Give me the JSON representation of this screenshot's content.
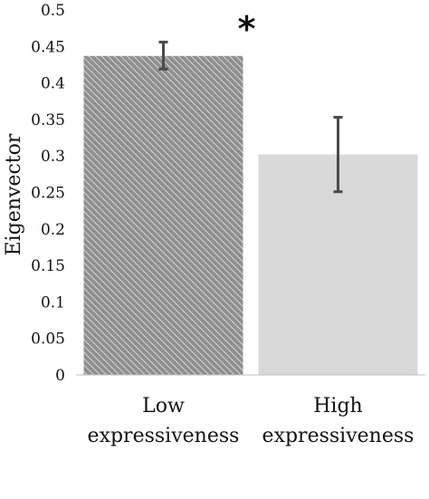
{
  "chart_data": {
    "type": "bar",
    "title": "",
    "xlabel": "",
    "ylabel": "Eigenvector",
    "ylim": [
      0,
      0.5
    ],
    "yticks": [
      "0",
      "0.05",
      "0.1",
      "0.15",
      "0.2",
      "0.25",
      "0.3",
      "0.35",
      "0.4",
      "0.45",
      "0.5"
    ],
    "categories": [
      "Low expressiveness",
      "High expressiveness"
    ],
    "category_lines": [
      [
        "Low",
        "expressiveness"
      ],
      [
        "High",
        "expressiveness"
      ]
    ],
    "values": [
      0.437,
      0.302
    ],
    "error_low": [
      0.419,
      0.251
    ],
    "error_high": [
      0.456,
      0.353
    ],
    "bar_styles": [
      "diagonal-hatch",
      "solid"
    ],
    "colors": {
      "low_bar": "#8f8f8f",
      "low_bar_stripe": "#d4d4d4",
      "high_bar": "#d9d9d9",
      "error_bar": "#4a4a4a",
      "axis": "#bfbfbf"
    },
    "significance_marker": "*",
    "significance_category": 0,
    "grid": false,
    "legend": "none"
  }
}
